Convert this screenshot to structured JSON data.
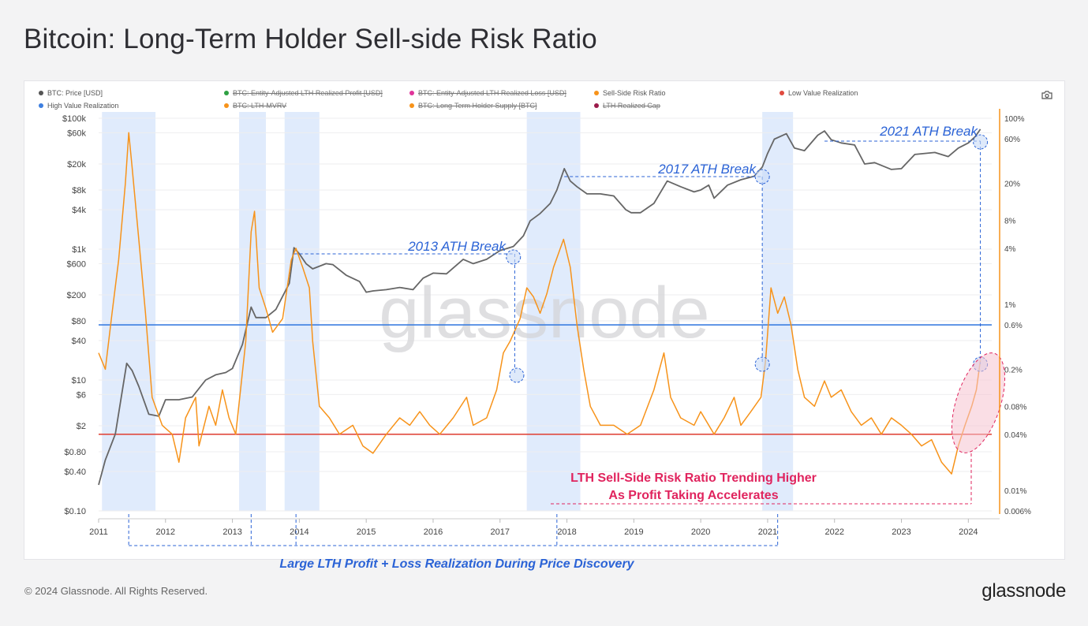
{
  "page": {
    "title": "Bitcoin: Long-Term Holder Sell-side Risk Ratio",
    "copyright": "© 2024 Glassnode. All Rights Reserved.",
    "brand": "glassnode",
    "watermark": "glassnode"
  },
  "legend": [
    {
      "label": "BTC: Price [USD]",
      "color": "#555555",
      "active": true
    },
    {
      "label": "BTC: Entity-Adjusted LTH Realized Profit [USD]",
      "color": "#2ea043",
      "active": false
    },
    {
      "label": "BTC: Entity-Adjusted LTH Realized Loss [USD]",
      "color": "#e0349b",
      "active": false
    },
    {
      "label": "Sell-Side Risk Ratio",
      "color": "#f7931a",
      "active": true
    },
    {
      "label": "Low Value Realization",
      "color": "#e04a3f",
      "active": true
    },
    {
      "label": "High Value Realization",
      "color": "#3d7fe0",
      "active": true
    },
    {
      "label": "BTC: LTH-MVRV",
      "color": "#f7931a",
      "active": false
    },
    {
      "label": "BTC: Long-Term Holder Supply [BTC]",
      "color": "#f7931a",
      "active": false
    },
    {
      "label": "LTH Realized Cap",
      "color": "#9b1b4a",
      "active": false
    }
  ],
  "chart_data": {
    "type": "line",
    "x_ticks": [
      "2011",
      "2012",
      "2013",
      "2014",
      "2015",
      "2016",
      "2017",
      "2018",
      "2019",
      "2020",
      "2021",
      "2022",
      "2023",
      "2024"
    ],
    "y_left": {
      "scale": "log",
      "unit": "USD",
      "ticks": [
        "$100k",
        "$60k",
        "$20k",
        "$8k",
        "$4k",
        "$1k",
        "$600",
        "$200",
        "$80",
        "$40",
        "$10",
        "$6",
        "$2",
        "$0.80",
        "$0.40",
        "$0.10"
      ],
      "range": [
        0.1,
        100000
      ]
    },
    "y_right": {
      "scale": "log",
      "unit": "%",
      "ticks": [
        "100%",
        "60%",
        "20%",
        "8%",
        "4%",
        "1%",
        "0.6%",
        "0.2%",
        "0.08%",
        "0.04%",
        "0.01%",
        "0.006%"
      ],
      "range": [
        0.006,
        100
      ]
    },
    "series": [
      {
        "name": "BTC: Price [USD]",
        "color": "#666666",
        "axis": "left",
        "points": [
          [
            2011.0,
            0.25
          ],
          [
            2011.1,
            0.6
          ],
          [
            2011.25,
            1.5
          ],
          [
            2011.42,
            18
          ],
          [
            2011.5,
            14
          ],
          [
            2011.6,
            8
          ],
          [
            2011.75,
            3
          ],
          [
            2011.9,
            2.8
          ],
          [
            2012.0,
            5
          ],
          [
            2012.2,
            5
          ],
          [
            2012.4,
            5.5
          ],
          [
            2012.6,
            10
          ],
          [
            2012.75,
            12
          ],
          [
            2012.9,
            13
          ],
          [
            2013.0,
            15
          ],
          [
            2013.15,
            35
          ],
          [
            2013.28,
            130
          ],
          [
            2013.35,
            90
          ],
          [
            2013.5,
            90
          ],
          [
            2013.65,
            120
          ],
          [
            2013.85,
            300
          ],
          [
            2013.92,
            1050
          ],
          [
            2014.0,
            850
          ],
          [
            2014.1,
            600
          ],
          [
            2014.2,
            500
          ],
          [
            2014.4,
            600
          ],
          [
            2014.5,
            580
          ],
          [
            2014.7,
            400
          ],
          [
            2014.9,
            320
          ],
          [
            2015.0,
            220
          ],
          [
            2015.1,
            230
          ],
          [
            2015.3,
            240
          ],
          [
            2015.5,
            260
          ],
          [
            2015.7,
            240
          ],
          [
            2015.85,
            360
          ],
          [
            2016.0,
            430
          ],
          [
            2016.2,
            420
          ],
          [
            2016.45,
            700
          ],
          [
            2016.6,
            600
          ],
          [
            2016.8,
            700
          ],
          [
            2017.0,
            950
          ],
          [
            2017.2,
            1100
          ],
          [
            2017.35,
            1600
          ],
          [
            2017.45,
            2700
          ],
          [
            2017.6,
            3500
          ],
          [
            2017.75,
            5000
          ],
          [
            2017.85,
            8000
          ],
          [
            2017.96,
            17000
          ],
          [
            2018.05,
            11000
          ],
          [
            2018.15,
            9000
          ],
          [
            2018.3,
            7000
          ],
          [
            2018.5,
            7000
          ],
          [
            2018.7,
            6500
          ],
          [
            2018.88,
            4000
          ],
          [
            2018.96,
            3600
          ],
          [
            2019.1,
            3600
          ],
          [
            2019.3,
            5000
          ],
          [
            2019.5,
            11000
          ],
          [
            2019.7,
            9000
          ],
          [
            2019.9,
            7500
          ],
          [
            2020.0,
            8000
          ],
          [
            2020.12,
            9500
          ],
          [
            2020.2,
            6000
          ],
          [
            2020.4,
            9500
          ],
          [
            2020.6,
            11500
          ],
          [
            2020.8,
            13000
          ],
          [
            2020.92,
            18000
          ],
          [
            2021.0,
            29000
          ],
          [
            2021.1,
            48000
          ],
          [
            2021.28,
            58000
          ],
          [
            2021.4,
            35000
          ],
          [
            2021.55,
            32000
          ],
          [
            2021.75,
            55000
          ],
          [
            2021.85,
            64000
          ],
          [
            2021.95,
            47000
          ],
          [
            2022.1,
            42000
          ],
          [
            2022.3,
            39000
          ],
          [
            2022.45,
            20000
          ],
          [
            2022.6,
            21000
          ],
          [
            2022.85,
            16500
          ],
          [
            2023.0,
            17000
          ],
          [
            2023.2,
            28000
          ],
          [
            2023.5,
            30000
          ],
          [
            2023.7,
            26000
          ],
          [
            2023.85,
            35000
          ],
          [
            2024.0,
            42000
          ],
          [
            2024.1,
            52000
          ],
          [
            2024.18,
            68000
          ]
        ]
      },
      {
        "name": "Sell-Side Risk Ratio",
        "color": "#f7931a",
        "axis": "right",
        "points": [
          [
            2011.0,
            0.3
          ],
          [
            2011.1,
            0.2
          ],
          [
            2011.2,
            0.8
          ],
          [
            2011.3,
            3
          ],
          [
            2011.4,
            20
          ],
          [
            2011.45,
            70
          ],
          [
            2011.5,
            30
          ],
          [
            2011.6,
            5
          ],
          [
            2011.7,
            0.8
          ],
          [
            2011.8,
            0.1
          ],
          [
            2011.95,
            0.05
          ],
          [
            2012.1,
            0.04
          ],
          [
            2012.2,
            0.02
          ],
          [
            2012.3,
            0.06
          ],
          [
            2012.45,
            0.1
          ],
          [
            2012.5,
            0.03
          ],
          [
            2012.65,
            0.08
          ],
          [
            2012.75,
            0.05
          ],
          [
            2012.85,
            0.12
          ],
          [
            2012.95,
            0.06
          ],
          [
            2013.05,
            0.04
          ],
          [
            2013.2,
            0.4
          ],
          [
            2013.28,
            6
          ],
          [
            2013.33,
            10
          ],
          [
            2013.4,
            1.5
          ],
          [
            2013.5,
            0.9
          ],
          [
            2013.6,
            0.5
          ],
          [
            2013.75,
            0.7
          ],
          [
            2013.88,
            3
          ],
          [
            2013.95,
            4
          ],
          [
            2014.05,
            2.5
          ],
          [
            2014.15,
            1.5
          ],
          [
            2014.2,
            0.4
          ],
          [
            2014.3,
            0.08
          ],
          [
            2014.45,
            0.06
          ],
          [
            2014.6,
            0.04
          ],
          [
            2014.8,
            0.05
          ],
          [
            2014.95,
            0.03
          ],
          [
            2015.1,
            0.025
          ],
          [
            2015.3,
            0.04
          ],
          [
            2015.5,
            0.06
          ],
          [
            2015.65,
            0.05
          ],
          [
            2015.8,
            0.07
          ],
          [
            2015.95,
            0.05
          ],
          [
            2016.1,
            0.04
          ],
          [
            2016.3,
            0.06
          ],
          [
            2016.5,
            0.1
          ],
          [
            2016.6,
            0.05
          ],
          [
            2016.8,
            0.06
          ],
          [
            2016.95,
            0.12
          ],
          [
            2017.05,
            0.3
          ],
          [
            2017.15,
            0.4
          ],
          [
            2017.3,
            0.7
          ],
          [
            2017.4,
            1.5
          ],
          [
            2017.5,
            1.2
          ],
          [
            2017.6,
            0.8
          ],
          [
            2017.7,
            1.3
          ],
          [
            2017.8,
            2.5
          ],
          [
            2017.95,
            5
          ],
          [
            2018.05,
            2.5
          ],
          [
            2018.15,
            0.6
          ],
          [
            2018.25,
            0.2
          ],
          [
            2018.35,
            0.08
          ],
          [
            2018.5,
            0.05
          ],
          [
            2018.7,
            0.05
          ],
          [
            2018.9,
            0.04
          ],
          [
            2019.1,
            0.05
          ],
          [
            2019.3,
            0.12
          ],
          [
            2019.45,
            0.3
          ],
          [
            2019.55,
            0.1
          ],
          [
            2019.7,
            0.06
          ],
          [
            2019.9,
            0.05
          ],
          [
            2020.0,
            0.07
          ],
          [
            2020.2,
            0.04
          ],
          [
            2020.35,
            0.06
          ],
          [
            2020.5,
            0.1
          ],
          [
            2020.6,
            0.05
          ],
          [
            2020.75,
            0.07
          ],
          [
            2020.9,
            0.1
          ],
          [
            2020.97,
            0.25
          ],
          [
            2021.05,
            1.5
          ],
          [
            2021.15,
            0.8
          ],
          [
            2021.25,
            1.2
          ],
          [
            2021.35,
            0.6
          ],
          [
            2021.45,
            0.2
          ],
          [
            2021.55,
            0.1
          ],
          [
            2021.7,
            0.08
          ],
          [
            2021.85,
            0.15
          ],
          [
            2021.95,
            0.1
          ],
          [
            2022.1,
            0.12
          ],
          [
            2022.25,
            0.07
          ],
          [
            2022.4,
            0.05
          ],
          [
            2022.55,
            0.06
          ],
          [
            2022.7,
            0.04
          ],
          [
            2022.85,
            0.06
          ],
          [
            2023.0,
            0.05
          ],
          [
            2023.15,
            0.04
          ],
          [
            2023.3,
            0.03
          ],
          [
            2023.45,
            0.035
          ],
          [
            2023.6,
            0.02
          ],
          [
            2023.75,
            0.015
          ],
          [
            2023.85,
            0.03
          ],
          [
            2023.95,
            0.05
          ],
          [
            2024.05,
            0.08
          ],
          [
            2024.12,
            0.12
          ],
          [
            2024.18,
            0.25
          ]
        ]
      }
    ],
    "thresholds": [
      {
        "name": "High Value Realization",
        "value": 0.6,
        "axis": "right",
        "color": "#3d7fe0"
      },
      {
        "name": "Low Value Realization",
        "value": 0.04,
        "axis": "right",
        "color": "#e04a3f"
      }
    ],
    "shaded_periods": [
      [
        2011.05,
        2011.85
      ],
      [
        2013.1,
        2013.5
      ],
      [
        2013.78,
        2014.3
      ],
      [
        2017.4,
        2018.2
      ],
      [
        2020.92,
        2021.38
      ]
    ],
    "annotations": [
      {
        "text": "2013 ATH Break",
        "color": "#2b63d6"
      },
      {
        "text": "2017 ATH Break",
        "color": "#2b63d6"
      },
      {
        "text": "2021 ATH Break",
        "color": "#2b63d6"
      },
      {
        "text": "LTH Sell-Side Risk Ratio Trending Higher",
        "color": "#e0245e"
      },
      {
        "text": "As Profit Taking Accelerates",
        "color": "#e0245e"
      },
      {
        "text": "Large LTH Profit + Loss Realization During Price Discovery",
        "color": "#2b63d6"
      }
    ],
    "grid": true
  }
}
